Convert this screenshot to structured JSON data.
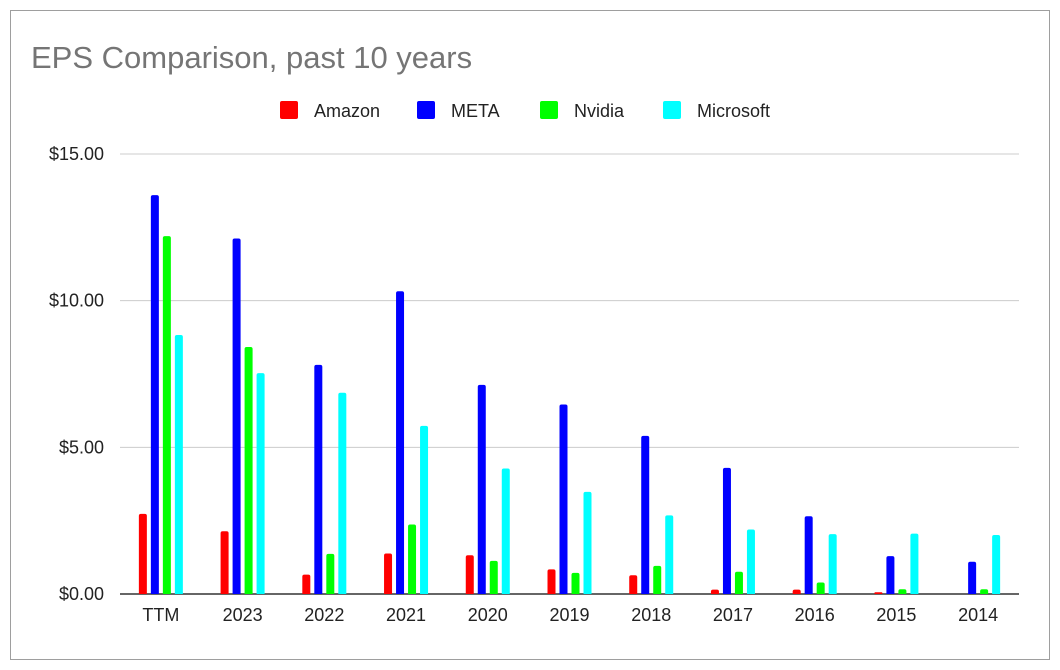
{
  "chart_data": {
    "type": "bar",
    "title": "EPS Comparison, past 10 years",
    "xlabel": "",
    "ylabel": "",
    "categories": [
      "TTM",
      "2023",
      "2022",
      "2021",
      "2020",
      "2019",
      "2018",
      "2017",
      "2016",
      "2015",
      "2014"
    ],
    "series": [
      {
        "name": "Amazon",
        "color": "#ff0000",
        "values": [
          2.73,
          2.14,
          0.66,
          1.38,
          1.32,
          0.84,
          0.64,
          0.15,
          0.15,
          0.06,
          0.0
        ]
      },
      {
        "name": "META",
        "color": "#0000ff",
        "values": [
          13.6,
          12.12,
          7.81,
          10.32,
          7.13,
          6.46,
          5.39,
          4.3,
          2.65,
          1.29,
          1.1
        ]
      },
      {
        "name": "Nvidia",
        "color": "#00ff00",
        "values": [
          12.2,
          8.42,
          1.37,
          2.37,
          1.13,
          0.72,
          0.96,
          0.76,
          0.39,
          0.16,
          0.16
        ]
      },
      {
        "name": "Microsoft",
        "color": "#00ffff",
        "values": [
          8.83,
          7.53,
          6.86,
          5.73,
          4.28,
          3.48,
          2.68,
          2.2,
          2.04,
          2.06,
          2.01
        ]
      }
    ],
    "ylim": [
      0,
      15
    ],
    "yticks": [
      0,
      5,
      10,
      15
    ],
    "ytick_labels": [
      "$0.00",
      "$5.00",
      "$10.00",
      "$15.00"
    ],
    "grid": true,
    "legend_position": "top-center"
  }
}
